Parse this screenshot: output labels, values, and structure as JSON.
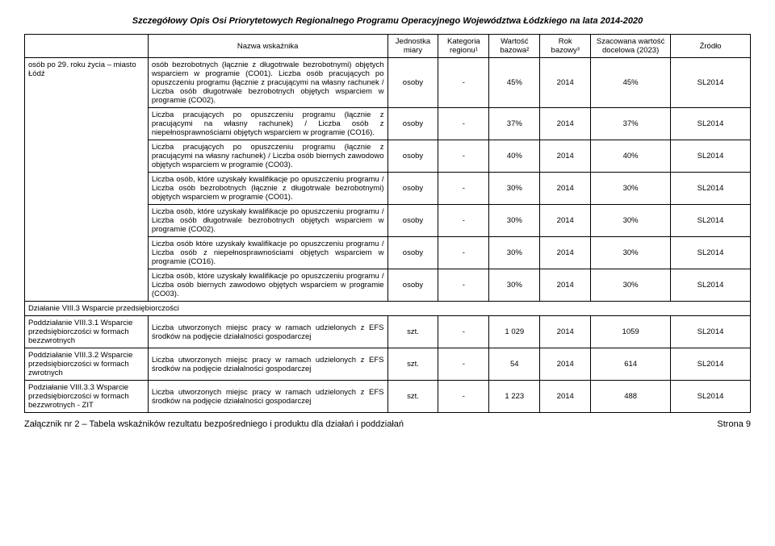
{
  "header": "Szczegółowy Opis Osi Priorytetowych Regionalnego Programu Operacyjnego Województwa Łódzkiego na lata 2014-2020",
  "thead": {
    "c1": "",
    "c2": "Nazwa wskaźnika",
    "c3": "Jednostka miary",
    "c4": "Kategoria regionu¹",
    "c5": "Wartość bazowa²",
    "c6": "Rok bazowy³",
    "c7": "Szacowana wartość docelowa (2023)",
    "c8": "Źródło"
  },
  "leftTop": "osób po 29. roku życia – miasto Łódź",
  "group1": [
    {
      "desc": "osób bezrobotnych (łącznie z długotrwale bezrobotnymi) objętych wsparciem w programie (CO01).\nLiczba osób pracujących po opuszczeniu programu (łącznie z pracującymi na własny rachunek / Liczba osób długotrwale bezrobotnych objętych wsparciem w programie (CO02).",
      "unit": "osoby",
      "kat": "-",
      "wart": "45%",
      "rok": "2014",
      "szac": "45%",
      "zr": "SL2014"
    },
    {
      "desc": "Liczba pracujących po opuszczeniu programu (łącznie z pracującymi na własny rachunek) / Liczba osób z niepełnosprawnościami objętych wsparciem w programie (CO16).",
      "unit": "osoby",
      "kat": "-",
      "wart": "37%",
      "rok": "2014",
      "szac": "37%",
      "zr": "SL2014"
    },
    {
      "desc": "Liczba pracujących po opuszczeniu programu (łącznie z pracującymi na własny rachunek) / Liczba osób biernych zawodowo objętych wsparciem w programie (CO03).",
      "unit": "osoby",
      "kat": "-",
      "wart": "40%",
      "rok": "2014",
      "szac": "40%",
      "zr": "SL2014"
    },
    {
      "desc": "Liczba osób, które uzyskały kwalifikacje po opuszczeniu programu / Liczba osób bezrobotnych (łącznie z długotrwale bezrobotnymi) objętych wsparciem w programie (CO01).",
      "unit": "osoby",
      "kat": "-",
      "wart": "30%",
      "rok": "2014",
      "szac": "30%",
      "zr": "SL2014"
    },
    {
      "desc": "Liczba osób, które uzyskały kwalifikacje po opuszczeniu programu / Liczba osób długotrwale bezrobotnych objętych wsparciem w programie (CO02).",
      "unit": "osoby",
      "kat": "-",
      "wart": "30%",
      "rok": "2014",
      "szac": "30%",
      "zr": "SL2014"
    },
    {
      "desc": "Liczba osób które uzyskały kwalifikacje po opuszczeniu programu / Liczba osób z niepełnosprawnościami objętych wsparciem w programie (CO16).",
      "unit": "osoby",
      "kat": "-",
      "wart": "30%",
      "rok": "2014",
      "szac": "30%",
      "zr": "SL2014"
    },
    {
      "desc": "Liczba osób, które uzyskały kwalifikacje po opuszczeniu programu / Liczba osób biernych zawodowo objętych wsparciem w programie (CO03).",
      "unit": "osoby",
      "kat": "-",
      "wart": "30%",
      "rok": "2014",
      "szac": "30%",
      "zr": "SL2014"
    }
  ],
  "sectionTitle": "Działanie VIII.3 Wsparcie przedsiębiorczości",
  "group2": [
    {
      "left": "Poddziałanie VIII.3.1 Wsparcie przedsiębiorczości w formach bezzwrotnych",
      "desc": "Liczba utworzonych miejsc pracy w ramach udzielonych z EFS środków na podjęcie działalności gospodarczej",
      "unit": "szt.",
      "kat": "-",
      "wart": "1 029",
      "rok": "2014",
      "szac": "1059",
      "zr": "SL2014"
    },
    {
      "left": "Poddziałanie VIII.3.2 Wsparcie przedsiębiorczości w formach zwrotnych",
      "desc": "Liczba utworzonych miejsc pracy w ramach udzielonych z EFS środków na podjęcie działalności gospodarczej",
      "unit": "szt.",
      "kat": "-",
      "wart": "54",
      "rok": "2014",
      "szac": "614",
      "zr": "SL2014"
    },
    {
      "left": "Podziałanie VIII.3.3 Wsparcie przedsiębiorczości w formach bezzwrotnych - ZIT",
      "desc": "Liczba utworzonych miejsc pracy w ramach udzielonych z EFS środków na podjęcie działalności gospodarczej",
      "unit": "szt.",
      "kat": "-",
      "wart": "1 223",
      "rok": "2014",
      "szac": "488",
      "zr": "SL2014"
    }
  ],
  "footerLeft": "Załącznik nr 2 – Tabela wskaźników rezultatu bezpośredniego i produktu dla działań i poddziałań",
  "footerRight": "Strona 9"
}
